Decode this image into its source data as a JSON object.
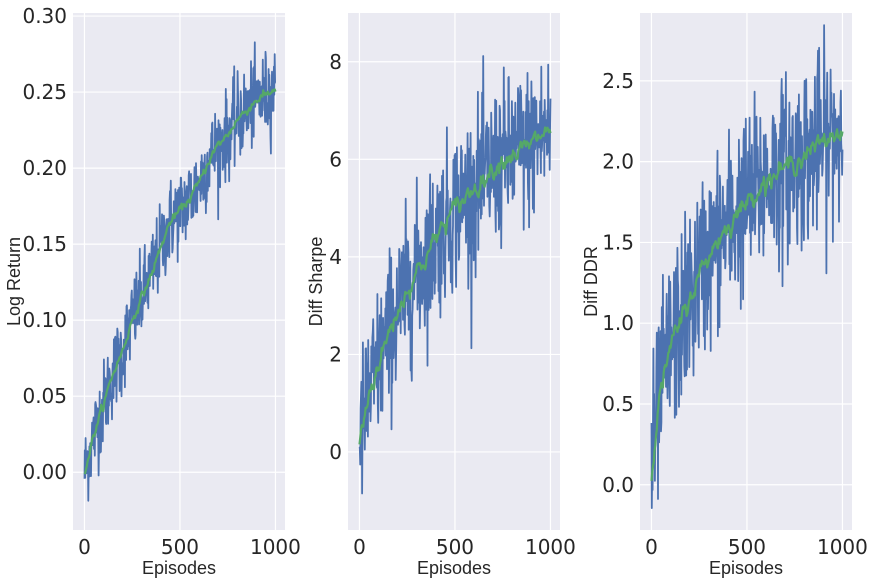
{
  "chart_data": [
    {
      "type": "line",
      "xlabel": "Episodes",
      "ylabel": "Log Return",
      "xlim": [
        -60,
        1050
      ],
      "ylim": [
        -0.038,
        0.302
      ],
      "xticks": [
        0,
        500,
        1000
      ],
      "yticks": [
        0.0,
        0.05,
        0.1,
        0.15,
        0.2,
        0.25,
        0.3
      ],
      "ytick_labels": [
        "0.00",
        "0.05",
        "0.10",
        "0.15",
        "0.20",
        "0.25",
        "0.30"
      ],
      "grid": true,
      "series": [
        {
          "color": "#4C72B0",
          "style": "raw",
          "x": [
            0,
            50,
            100,
            150,
            200,
            250,
            300,
            350,
            400,
            450,
            500,
            550,
            600,
            650,
            700,
            750,
            800,
            850,
            900,
            950,
            1000
          ],
          "y": [
            0.0,
            0.025,
            0.045,
            0.065,
            0.08,
            0.1,
            0.115,
            0.13,
            0.148,
            0.165,
            0.172,
            0.18,
            0.19,
            0.205,
            0.215,
            0.222,
            0.232,
            0.238,
            0.245,
            0.248,
            0.252
          ],
          "noise": 0.028
        },
        {
          "color": "#55A868",
          "style": "smooth",
          "x": [
            0,
            50,
            100,
            150,
            200,
            250,
            300,
            350,
            400,
            450,
            500,
            550,
            600,
            650,
            700,
            750,
            800,
            850,
            900,
            950,
            1000
          ],
          "y": [
            0.0,
            0.025,
            0.045,
            0.065,
            0.08,
            0.1,
            0.115,
            0.13,
            0.148,
            0.165,
            0.172,
            0.18,
            0.19,
            0.205,
            0.215,
            0.222,
            0.232,
            0.238,
            0.245,
            0.248,
            0.252
          ],
          "noise": 0.006
        }
      ]
    },
    {
      "type": "line",
      "xlabel": "Episodes",
      "ylabel": "Diff Sharpe",
      "xlim": [
        -60,
        1050
      ],
      "ylim": [
        -1.6,
        9.0
      ],
      "xticks": [
        0,
        500,
        1000
      ],
      "yticks": [
        0,
        2,
        4,
        6,
        8
      ],
      "ytick_labels": [
        "0",
        "2",
        "4",
        "6",
        "8"
      ],
      "grid": true,
      "series": [
        {
          "color": "#4C72B0",
          "style": "raw",
          "x": [
            0,
            50,
            100,
            150,
            200,
            250,
            300,
            350,
            400,
            450,
            500,
            550,
            600,
            650,
            700,
            750,
            800,
            850,
            900,
            950,
            1000
          ],
          "y": [
            0.2,
            1.2,
            1.8,
            2.4,
            2.9,
            3.3,
            3.7,
            4.0,
            4.4,
            4.7,
            5.0,
            5.2,
            5.4,
            5.6,
            5.8,
            6.0,
            6.1,
            6.2,
            6.3,
            6.5,
            6.6
          ],
          "noise": 1.6
        },
        {
          "color": "#55A868",
          "style": "smooth",
          "x": [
            0,
            50,
            100,
            150,
            200,
            250,
            300,
            350,
            400,
            450,
            500,
            550,
            600,
            650,
            700,
            750,
            800,
            850,
            900,
            950,
            1000
          ],
          "y": [
            0.2,
            1.2,
            1.8,
            2.4,
            2.9,
            3.3,
            3.7,
            4.0,
            4.4,
            4.7,
            5.0,
            5.2,
            5.4,
            5.6,
            5.8,
            6.0,
            6.1,
            6.2,
            6.3,
            6.5,
            6.6
          ],
          "noise": 0.4
        }
      ]
    },
    {
      "type": "line",
      "xlabel": "Episodes",
      "ylabel": "Diff DDR",
      "xlim": [
        -60,
        1050
      ],
      "ylim": [
        -0.28,
        2.92
      ],
      "xticks": [
        0,
        500,
        1000
      ],
      "yticks": [
        0.0,
        0.5,
        1.0,
        1.5,
        2.0,
        2.5
      ],
      "ytick_labels": [
        "0.0",
        "0.5",
        "1.0",
        "1.5",
        "2.0",
        "2.5"
      ],
      "grid": true,
      "series": [
        {
          "color": "#4C72B0",
          "style": "raw",
          "x": [
            0,
            50,
            100,
            150,
            200,
            250,
            300,
            350,
            400,
            450,
            500,
            550,
            600,
            650,
            700,
            750,
            800,
            850,
            900,
            950,
            1000
          ],
          "y": [
            0.1,
            0.6,
            0.85,
            1.0,
            1.15,
            1.3,
            1.42,
            1.52,
            1.6,
            1.68,
            1.75,
            1.82,
            1.88,
            1.92,
            1.96,
            2.0,
            2.04,
            2.08,
            2.12,
            2.16,
            2.2
          ],
          "noise": 0.55
        },
        {
          "color": "#55A868",
          "style": "smooth",
          "x": [
            0,
            50,
            100,
            150,
            200,
            250,
            300,
            350,
            400,
            450,
            500,
            550,
            600,
            650,
            700,
            750,
            800,
            850,
            900,
            950,
            1000
          ],
          "y": [
            0.1,
            0.6,
            0.85,
            1.0,
            1.15,
            1.3,
            1.42,
            1.52,
            1.6,
            1.68,
            1.75,
            1.82,
            1.88,
            1.92,
            1.96,
            2.0,
            2.04,
            2.08,
            2.12,
            2.16,
            2.2
          ],
          "noise": 0.12
        }
      ]
    }
  ]
}
